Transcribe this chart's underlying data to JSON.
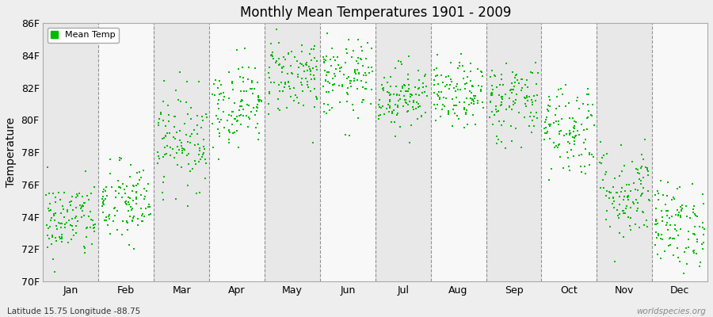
{
  "title": "Monthly Mean Temperatures 1901 - 2009",
  "ylabel": "Temperature",
  "subtitle_left": "Latitude 15.75 Longitude -88.75",
  "subtitle_right": "worldspecies.org",
  "legend_label": "Mean Temp",
  "point_color": "#00bb00",
  "background_color": "#eeeeee",
  "plot_bg_even": "#e8e8e8",
  "plot_bg_odd": "#f8f8f8",
  "ylim_min": 70,
  "ylim_max": 86,
  "yticks": [
    70,
    72,
    74,
    76,
    78,
    80,
    82,
    84,
    86
  ],
  "ytick_labels": [
    "70F",
    "72F",
    "74F",
    "76F",
    "78F",
    "80F",
    "82F",
    "84F",
    "86F"
  ],
  "months": [
    "Jan",
    "Feb",
    "Mar",
    "Apr",
    "May",
    "Jun",
    "Jul",
    "Aug",
    "Sep",
    "Oct",
    "Nov",
    "Dec"
  ],
  "month_means": [
    73.8,
    74.8,
    78.8,
    81.0,
    82.8,
    82.5,
    81.5,
    81.5,
    81.2,
    79.5,
    75.5,
    73.5
  ],
  "month_stds": [
    1.2,
    1.3,
    1.5,
    1.3,
    1.2,
    1.2,
    1.0,
    1.0,
    1.3,
    1.5,
    1.5,
    1.3
  ],
  "n_years": 109,
  "seed": 42
}
